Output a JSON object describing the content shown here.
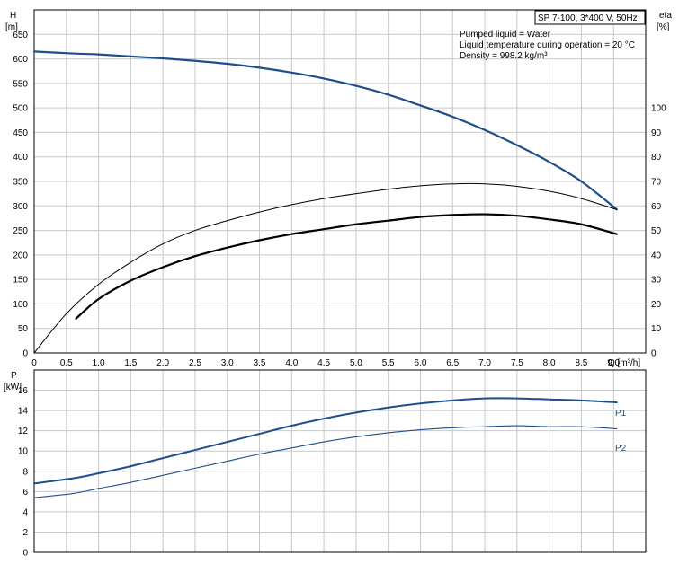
{
  "chart_data": [
    {
      "type": "line",
      "title": "SP 7-100, 3*400 V, 50Hz",
      "annotations": [
        "Pumped liquid = Water",
        "Liquid temperature during operation = 20 °C",
        "Density = 998.2 kg/m³"
      ],
      "xlabel": "Q [m³/h]",
      "ylabel_left": [
        "H",
        "[m]"
      ],
      "ylabel_right": [
        "eta",
        "[%]"
      ],
      "xlim": [
        0,
        9.5
      ],
      "ylim_left": [
        0,
        700
      ],
      "ylim_right": [
        0,
        140
      ],
      "x_ticks": [
        "0",
        "0.5",
        "1.0",
        "1.5",
        "2.0",
        "2.5",
        "3.0",
        "3.5",
        "4.0",
        "4.5",
        "5.0",
        "5.5",
        "6.0",
        "6.5",
        "7.0",
        "7.5",
        "8.0",
        "8.5",
        "9.0"
      ],
      "y_ticks_left": [
        "0",
        "50",
        "100",
        "150",
        "200",
        "250",
        "300",
        "350",
        "400",
        "450",
        "500",
        "550",
        "600",
        "650"
      ],
      "y_ticks_right": [
        "0",
        "10",
        "20",
        "30",
        "40",
        "50",
        "60",
        "70",
        "80",
        "90",
        "100"
      ],
      "series": [
        {
          "axis": "left",
          "color": "#1f4e8c",
          "width": 2.2,
          "x": [
            0,
            0.6,
            1.0,
            1.5,
            2.0,
            2.5,
            3.0,
            3.5,
            4.0,
            4.5,
            5.0,
            5.5,
            6.0,
            6.5,
            7.0,
            7.5,
            8.0,
            8.5,
            9.05
          ],
          "y": [
            615,
            611,
            609,
            605,
            601,
            596,
            590,
            582,
            572,
            560,
            545,
            527,
            505,
            482,
            455,
            424,
            390,
            350,
            293
          ]
        },
        {
          "axis": "right",
          "color": "#000000",
          "width": 1.0,
          "x": [
            0,
            0.5,
            1.0,
            1.5,
            2.0,
            2.5,
            3.0,
            3.5,
            4.0,
            4.5,
            5.0,
            5.5,
            6.0,
            6.5,
            7.0,
            7.5,
            8.0,
            8.5,
            9.05
          ],
          "y": [
            0,
            16,
            28,
            37,
            44.5,
            50,
            54,
            57.5,
            60.5,
            63,
            65,
            66.8,
            68.2,
            69,
            69,
            68,
            66,
            63,
            58.5
          ]
        },
        {
          "axis": "right",
          "color": "#000000",
          "width": 2.2,
          "x": [
            0.65,
            1.0,
            1.5,
            2.0,
            2.5,
            3.0,
            3.5,
            4.0,
            4.5,
            5.0,
            5.5,
            6.0,
            6.5,
            7.0,
            7.5,
            8.0,
            8.5,
            9.05
          ],
          "y": [
            14,
            22,
            29.5,
            35,
            39.5,
            43,
            46,
            48.5,
            50.5,
            52.5,
            54,
            55.5,
            56.3,
            56.6,
            56,
            54.5,
            52.5,
            48.5
          ]
        }
      ]
    },
    {
      "type": "line",
      "xlim": [
        0,
        9.5
      ],
      "ylim": [
        0,
        18
      ],
      "ylabel": [
        "P",
        "[kW]"
      ],
      "y_ticks": [
        "0",
        "2",
        "4",
        "6",
        "8",
        "10",
        "12",
        "14",
        "16"
      ],
      "series": [
        {
          "name": "P1",
          "color": "#1f4e8c",
          "width": 2.0,
          "x": [
            0,
            0.6,
            1.0,
            1.5,
            2.0,
            2.5,
            3.0,
            3.5,
            4.0,
            4.5,
            5.0,
            5.5,
            6.0,
            6.5,
            7.0,
            7.5,
            8.0,
            8.5,
            9.05
          ],
          "y": [
            6.8,
            7.3,
            7.8,
            8.5,
            9.3,
            10.1,
            10.9,
            11.7,
            12.5,
            13.2,
            13.8,
            14.3,
            14.7,
            15.0,
            15.2,
            15.2,
            15.1,
            15.0,
            14.8
          ]
        },
        {
          "name": "P2",
          "color": "#1f4e8c",
          "width": 1.1,
          "x": [
            0,
            0.6,
            1.0,
            1.5,
            2.0,
            2.5,
            3.0,
            3.5,
            4.0,
            4.5,
            5.0,
            5.5,
            6.0,
            6.5,
            7.0,
            7.5,
            8.0,
            8.5,
            9.05
          ],
          "y": [
            5.4,
            5.8,
            6.3,
            6.9,
            7.6,
            8.3,
            9.0,
            9.7,
            10.3,
            10.9,
            11.4,
            11.8,
            12.1,
            12.3,
            12.4,
            12.5,
            12.4,
            12.4,
            12.2
          ]
        }
      ]
    }
  ]
}
